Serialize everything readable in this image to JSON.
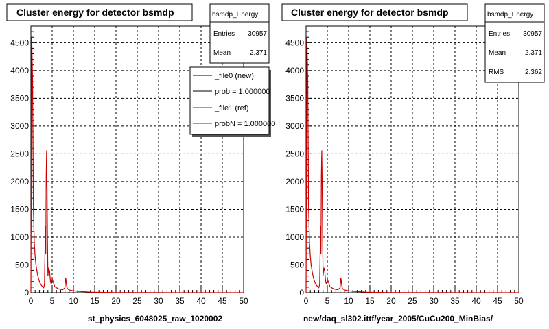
{
  "chart_data": [
    {
      "type": "line",
      "title": "Cluster energy for detector bsmdp",
      "xlabel": "st_physics_6048025_raw_1020002",
      "ylabel": "",
      "xlim": [
        0,
        50
      ],
      "ylim": [
        0,
        4800
      ],
      "x_ticks": [
        0,
        5,
        10,
        15,
        20,
        25,
        30,
        35,
        40,
        45,
        50
      ],
      "y_ticks": [
        0,
        500,
        1000,
        1500,
        2000,
        2500,
        3000,
        3500,
        4000,
        4500
      ],
      "grid": true,
      "stats": {
        "name": "bsmdp_Energy",
        "rows": [
          {
            "label": "Entries",
            "value": "30957"
          },
          {
            "label": "Mean",
            "value": "2.371"
          }
        ]
      },
      "legend": {
        "placement": "top-right",
        "entries": [
          {
            "label": "_file0 (new)",
            "color": "#000000"
          },
          {
            "label": "prob = 1.000000",
            "color": "#000000"
          },
          {
            "label": "_file1 (ref)",
            "color": "#cc0000"
          },
          {
            "label": "probN = 1.000000",
            "color": "#cc0000"
          }
        ]
      },
      "series": [
        {
          "color": "#cc0000",
          "x": [
            0,
            0.2,
            0.4,
            0.6,
            0.8,
            1.0,
            1.2,
            1.5,
            1.8,
            2.1,
            2.4,
            2.7,
            3.0,
            3.2,
            3.4,
            3.5,
            3.6,
            3.7,
            3.8,
            3.9,
            4.0,
            4.2,
            4.4,
            4.6,
            4.8,
            5.0,
            5.3,
            5.6,
            6.0,
            6.5,
            7.0,
            7.5,
            8.0,
            8.2,
            8.4,
            8.6,
            9.0,
            10.0,
            11.0,
            12.0,
            13.0,
            14.0,
            15.0,
            17.0,
            20.0,
            25.0,
            30.0,
            40.0,
            50.0
          ],
          "y": [
            0,
            4600,
            3800,
            1500,
            900,
            650,
            500,
            350,
            250,
            180,
            140,
            110,
            90,
            150,
            1200,
            700,
            2100,
            2560,
            1800,
            900,
            300,
            450,
            380,
            200,
            150,
            250,
            180,
            110,
            90,
            70,
            60,
            55,
            90,
            270,
            120,
            70,
            50,
            35,
            25,
            20,
            15,
            10,
            8,
            5,
            3,
            2,
            1,
            0,
            0
          ]
        }
      ]
    },
    {
      "type": "line",
      "title": "Cluster energy for detector bsmdp",
      "xlabel": "new/daq_sl302.ittf/year_2005/CuCu200_MinBias/",
      "ylabel": "",
      "xlim": [
        0,
        50
      ],
      "ylim": [
        0,
        4800
      ],
      "x_ticks": [
        0,
        5,
        10,
        15,
        20,
        25,
        30,
        35,
        40,
        45,
        50
      ],
      "y_ticks": [
        0,
        500,
        1000,
        1500,
        2000,
        2500,
        3000,
        3500,
        4000,
        4500
      ],
      "grid": true,
      "stats": {
        "name": "bsmdp_Energy",
        "rows": [
          {
            "label": "Entries",
            "value": "30957"
          },
          {
            "label": "Mean",
            "value": "2.371"
          },
          {
            "label": "RMS",
            "value": "2.362"
          }
        ]
      },
      "series": [
        {
          "color": "#cc0000",
          "x": [
            0,
            0.2,
            0.4,
            0.6,
            0.8,
            1.0,
            1.2,
            1.5,
            1.8,
            2.1,
            2.4,
            2.7,
            3.0,
            3.2,
            3.4,
            3.5,
            3.6,
            3.7,
            3.8,
            3.9,
            4.0,
            4.2,
            4.4,
            4.6,
            4.8,
            5.0,
            5.3,
            5.6,
            6.0,
            6.5,
            7.0,
            7.5,
            8.0,
            8.2,
            8.4,
            8.6,
            9.0,
            10.0,
            11.0,
            12.0,
            13.0,
            14.0,
            15.0,
            17.0,
            20.0,
            25.0,
            30.0,
            40.0,
            50.0
          ],
          "y": [
            0,
            4600,
            3800,
            1500,
            900,
            650,
            500,
            350,
            250,
            180,
            140,
            110,
            90,
            150,
            1200,
            700,
            2100,
            2560,
            1800,
            900,
            300,
            450,
            380,
            200,
            150,
            250,
            180,
            110,
            90,
            70,
            60,
            55,
            90,
            270,
            120,
            70,
            50,
            35,
            25,
            20,
            15,
            10,
            8,
            5,
            3,
            2,
            1,
            0,
            0
          ]
        }
      ]
    }
  ]
}
